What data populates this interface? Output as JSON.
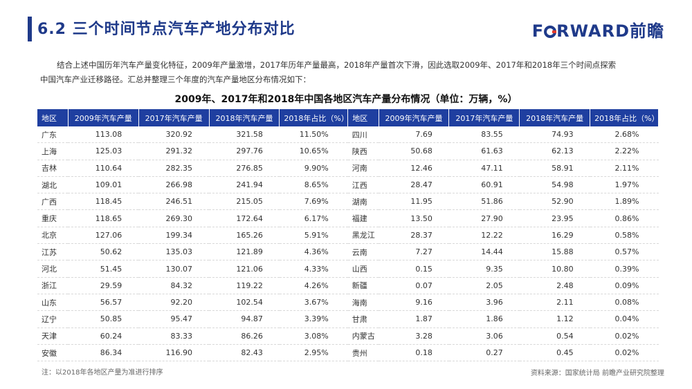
{
  "header": {
    "title": "6.2  三个时间节点汽车产地分布对比",
    "logo_text_a": "F",
    "logo_text_b": "RWARD前瞻"
  },
  "intro": {
    "line1": "结合上述中国历年汽车产量变化特征，2009年产量激增，2017年历年产量最高，2018年产量首次下滑，因此选取2009年、2017年和2018年三个时间点探索",
    "line2": "中国汽车产业迁移路径。汇总并整理三个年度的汽车产量地区分布情况如下："
  },
  "table": {
    "title": "2009年、2017年和2018年中国各地区汽车产量分布情况（单位：万辆，%）",
    "headers": [
      "地区",
      "2009年汽车产量",
      "2017年汽车产量",
      "2018年汽车产量",
      "2018年占比（%）",
      "地区",
      "2009年汽车产量",
      "2017年汽车产量",
      "2018年汽车产量",
      "2018年占比（%）"
    ],
    "rows": [
      [
        "广东",
        "113.08",
        "320.92",
        "321.58",
        "11.50%",
        "四川",
        "7.69",
        "83.55",
        "74.93",
        "2.68%"
      ],
      [
        "上海",
        "125.03",
        "291.32",
        "297.76",
        "10.65%",
        "陕西",
        "50.68",
        "61.63",
        "62.13",
        "2.22%"
      ],
      [
        "吉林",
        "110.64",
        "282.35",
        "276.85",
        "9.90%",
        "河南",
        "12.46",
        "47.11",
        "58.91",
        "2.11%"
      ],
      [
        "湖北",
        "109.01",
        "266.98",
        "241.94",
        "8.65%",
        "江西",
        "28.47",
        "60.91",
        "54.98",
        "1.97%"
      ],
      [
        "广西",
        "118.45",
        "246.51",
        "215.05",
        "7.69%",
        "湖南",
        "11.95",
        "51.86",
        "52.90",
        "1.89%"
      ],
      [
        "重庆",
        "118.65",
        "269.30",
        "172.64",
        "6.17%",
        "福建",
        "13.50",
        "27.90",
        "23.95",
        "0.86%"
      ],
      [
        "北京",
        "127.06",
        "199.34",
        "165.26",
        "5.91%",
        "黑龙江",
        "28.37",
        "12.22",
        "16.29",
        "0.58%"
      ],
      [
        "江苏",
        "50.62",
        "135.03",
        "121.89",
        "4.36%",
        "云南",
        "7.27",
        "14.44",
        "15.88",
        "0.57%"
      ],
      [
        "河北",
        "51.45",
        "130.07",
        "121.06",
        "4.33%",
        "山西",
        "0.15",
        "9.35",
        "10.80",
        "0.39%"
      ],
      [
        "浙江",
        "29.59",
        "84.32",
        "119.22",
        "4.26%",
        "新疆",
        "0.07",
        "2.05",
        "2.48",
        "0.09%"
      ],
      [
        "山东",
        "56.57",
        "92.20",
        "102.54",
        "3.67%",
        "海南",
        "9.16",
        "3.96",
        "2.11",
        "0.08%"
      ],
      [
        "辽宁",
        "50.85",
        "95.47",
        "94.87",
        "3.39%",
        "甘肃",
        "1.87",
        "1.86",
        "1.12",
        "0.04%"
      ],
      [
        "天津",
        "60.24",
        "83.33",
        "86.26",
        "3.08%",
        "内蒙古",
        "3.28",
        "3.06",
        "0.54",
        "0.02%"
      ],
      [
        "安徽",
        "86.34",
        "116.90",
        "82.43",
        "2.95%",
        "贵州",
        "0.18",
        "0.27",
        "0.45",
        "0.02%"
      ]
    ]
  },
  "footer": {
    "note": "注：以2018年各地区产量为准进行排序",
    "source": "资料来源：国家统计局  前瞻产业研究院整理"
  },
  "colors": {
    "brand": "#1f3a8a",
    "header_bg": "#1f3fa0",
    "accent_red": "#e23b2e"
  }
}
